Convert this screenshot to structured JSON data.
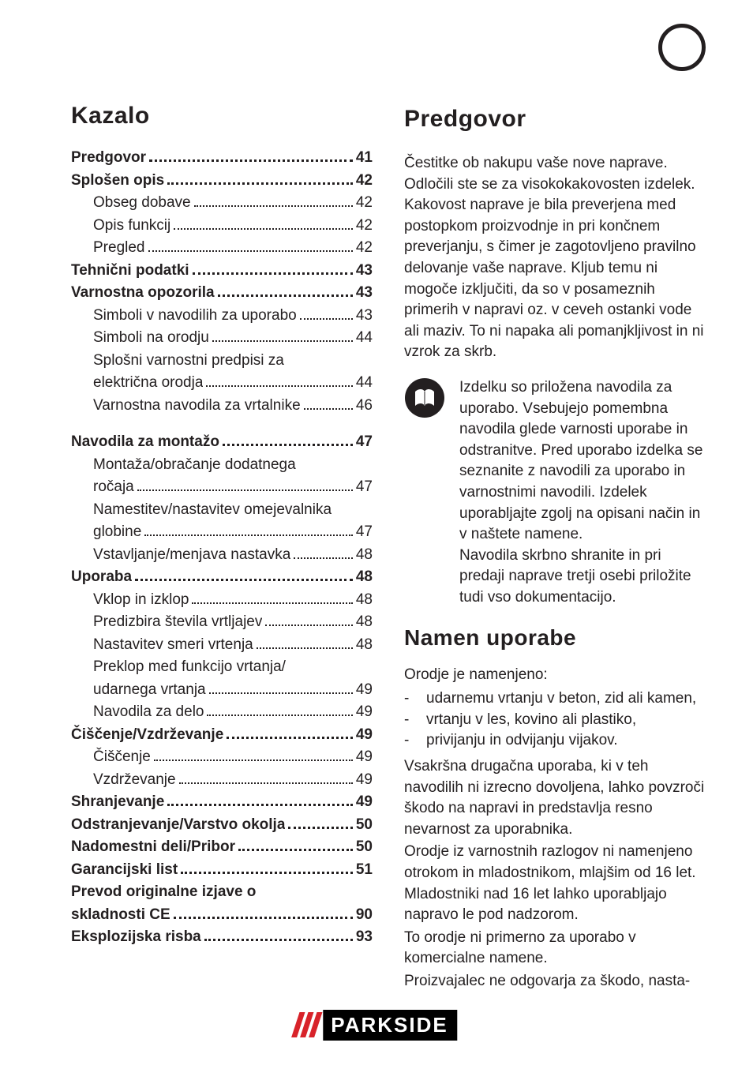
{
  "colors": {
    "text": "#231f20",
    "background": "#ffffff",
    "logo_red": "#d8232a",
    "logo_black": "#000000",
    "logo_white": "#ffffff",
    "note_icon_bg": "#231f20",
    "note_icon_fg": "#ffffff"
  },
  "typography": {
    "heading_fontsize_pt": 22,
    "body_fontsize_pt": 14,
    "font_family": "sans-serif"
  },
  "left": {
    "title": "Kazalo",
    "toc": [
      {
        "label": "Predgovor",
        "page": "41",
        "bold": true,
        "indent": false
      },
      {
        "label": "Splošen opis",
        "page": "42",
        "bold": true,
        "indent": false
      },
      {
        "label": "Obseg dobave",
        "page": "42",
        "bold": false,
        "indent": true
      },
      {
        "label": "Opis funkcij",
        "page": "42",
        "bold": false,
        "indent": true
      },
      {
        "label": "Pregled",
        "page": "42",
        "bold": false,
        "indent": true
      },
      {
        "label": "Tehnični podatki",
        "page": "43",
        "bold": true,
        "indent": false
      },
      {
        "label": "Varnostna opozorila",
        "page": "43",
        "bold": true,
        "indent": false
      },
      {
        "label": "Simboli v navodilih za uporabo",
        "page": "43",
        "bold": false,
        "indent": true
      },
      {
        "label": "Simboli na orodju",
        "page": "44",
        "bold": false,
        "indent": true
      },
      {
        "label": "Splošni varnostni predpisi za",
        "page": "",
        "bold": false,
        "indent": true,
        "nonum": true
      },
      {
        "label": "električna orodja",
        "page": "44",
        "bold": false,
        "indent": true
      },
      {
        "label": "Varnostna navodila za vrtalnike",
        "page": "46",
        "bold": false,
        "indent": true
      },
      {
        "gap": true
      },
      {
        "label": "Navodila za montažo",
        "page": "47",
        "bold": true,
        "indent": false
      },
      {
        "label": "Montaža/obračanje dodatnega",
        "page": "",
        "bold": false,
        "indent": true,
        "nonum": true
      },
      {
        "label": "ročaja",
        "page": "47",
        "bold": false,
        "indent": true
      },
      {
        "label": "Namestitev/nastavitev omejevalnika",
        "page": "",
        "bold": false,
        "indent": true,
        "nonum": true
      },
      {
        "label": "globine",
        "page": "47",
        "bold": false,
        "indent": true
      },
      {
        "label": "Vstavljanje/menjava nastavka",
        "page": "48",
        "bold": false,
        "indent": true
      },
      {
        "label": "Uporaba",
        "page": "48",
        "bold": true,
        "indent": false
      },
      {
        "label": "Vklop in izklop",
        "page": "48",
        "bold": false,
        "indent": true
      },
      {
        "label": "Predizbira števila vrtljajev",
        "page": "48",
        "bold": false,
        "indent": true
      },
      {
        "label": "Nastavitev smeri vrtenja",
        "page": "48",
        "bold": false,
        "indent": true
      },
      {
        "label": "Preklop med funkcijo vrtanja/",
        "page": "",
        "bold": false,
        "indent": true,
        "nonum": true
      },
      {
        "label": "udarnega vrtanja",
        "page": "49",
        "bold": false,
        "indent": true
      },
      {
        "label": "Navodila za delo",
        "page": "49",
        "bold": false,
        "indent": true
      },
      {
        "label": "Čiščenje/Vzdrževanje",
        "page": "49",
        "bold": true,
        "indent": false
      },
      {
        "label": "Čiščenje",
        "page": "49",
        "bold": false,
        "indent": true
      },
      {
        "label": "Vzdrževanje",
        "page": "49",
        "bold": false,
        "indent": true
      },
      {
        "label": "Shranjevanje",
        "page": "49",
        "bold": true,
        "indent": false
      },
      {
        "label": "Odstranjevanje/Varstvo okolja",
        "page": "50",
        "bold": true,
        "indent": false
      },
      {
        "label": "Nadomestni deli/Pribor",
        "page": "50",
        "bold": true,
        "indent": false
      },
      {
        "label": "Garancijski list",
        "page": "51",
        "bold": true,
        "indent": false
      },
      {
        "label": "Prevod originalne izjave o",
        "page": "",
        "bold": true,
        "indent": false,
        "nonum": true
      },
      {
        "label": "skladnosti CE",
        "page": "90",
        "bold": true,
        "indent": false
      },
      {
        "label": "Eksplozijska risba",
        "page": "93",
        "bold": true,
        "indent": false
      }
    ]
  },
  "right": {
    "title": "Predgovor",
    "para1": "Čestitke ob nakupu vaše nove naprave. Odločili ste se za visokokakovosten izdelek. Kakovost naprave je bila preverjena med postopkom proizvodnje in pri končnem preverjanju, s čimer je zagotovljeno pravilno delovanje vaše naprave. Kljub temu ni mogoče izključiti, da so v posameznih primerih v napravi oz. v ceveh ostanki vode ali maziv. To ni napaka ali pomanjkljivost in ni vzrok za skrb.",
    "note": "Izdelku so priložena navodila za uporabo. Vsebujejo pomembna navodila glede varnosti uporabe in odstranitve. Pred uporabo izdelka se seznanite z navodili za uporabo in varnostnimi navodili. Izdelek uporabljajte zgolj na opisani način in v naštete namene.\nNavodila skrbno shranite in pri predaji naprave tretji osebi priložite tudi vso dokumentacijo.",
    "subheading": "Namen uporabe",
    "intro": "Orodje je namenjeno:",
    "bullets": [
      "udarnemu vrtanju v beton, zid ali kamen,",
      "vrtanju v les, kovino ali plastiko,",
      "privijanju in odvijanju vijakov."
    ],
    "para2": "Vsakršna drugačna uporaba, ki v teh navodilih ni izrecno dovoljena, lahko povzroči škodo na napravi in predstavlja resno nevarnost za uporabnika.",
    "para3": "Orodje iz varnostnih razlogov ni namenjeno otrokom in mladostnikom, mlajšim od 16 let. Mladostniki nad 16 let lahko uporabljajo napravo le pod nadzorom.",
    "para4": "To orodje ni primerno za uporabo v komercialne namene.",
    "para5": "Proizvajalec ne odgovarja za škodo, nasta-"
  },
  "logo_text": "PARKSIDE"
}
